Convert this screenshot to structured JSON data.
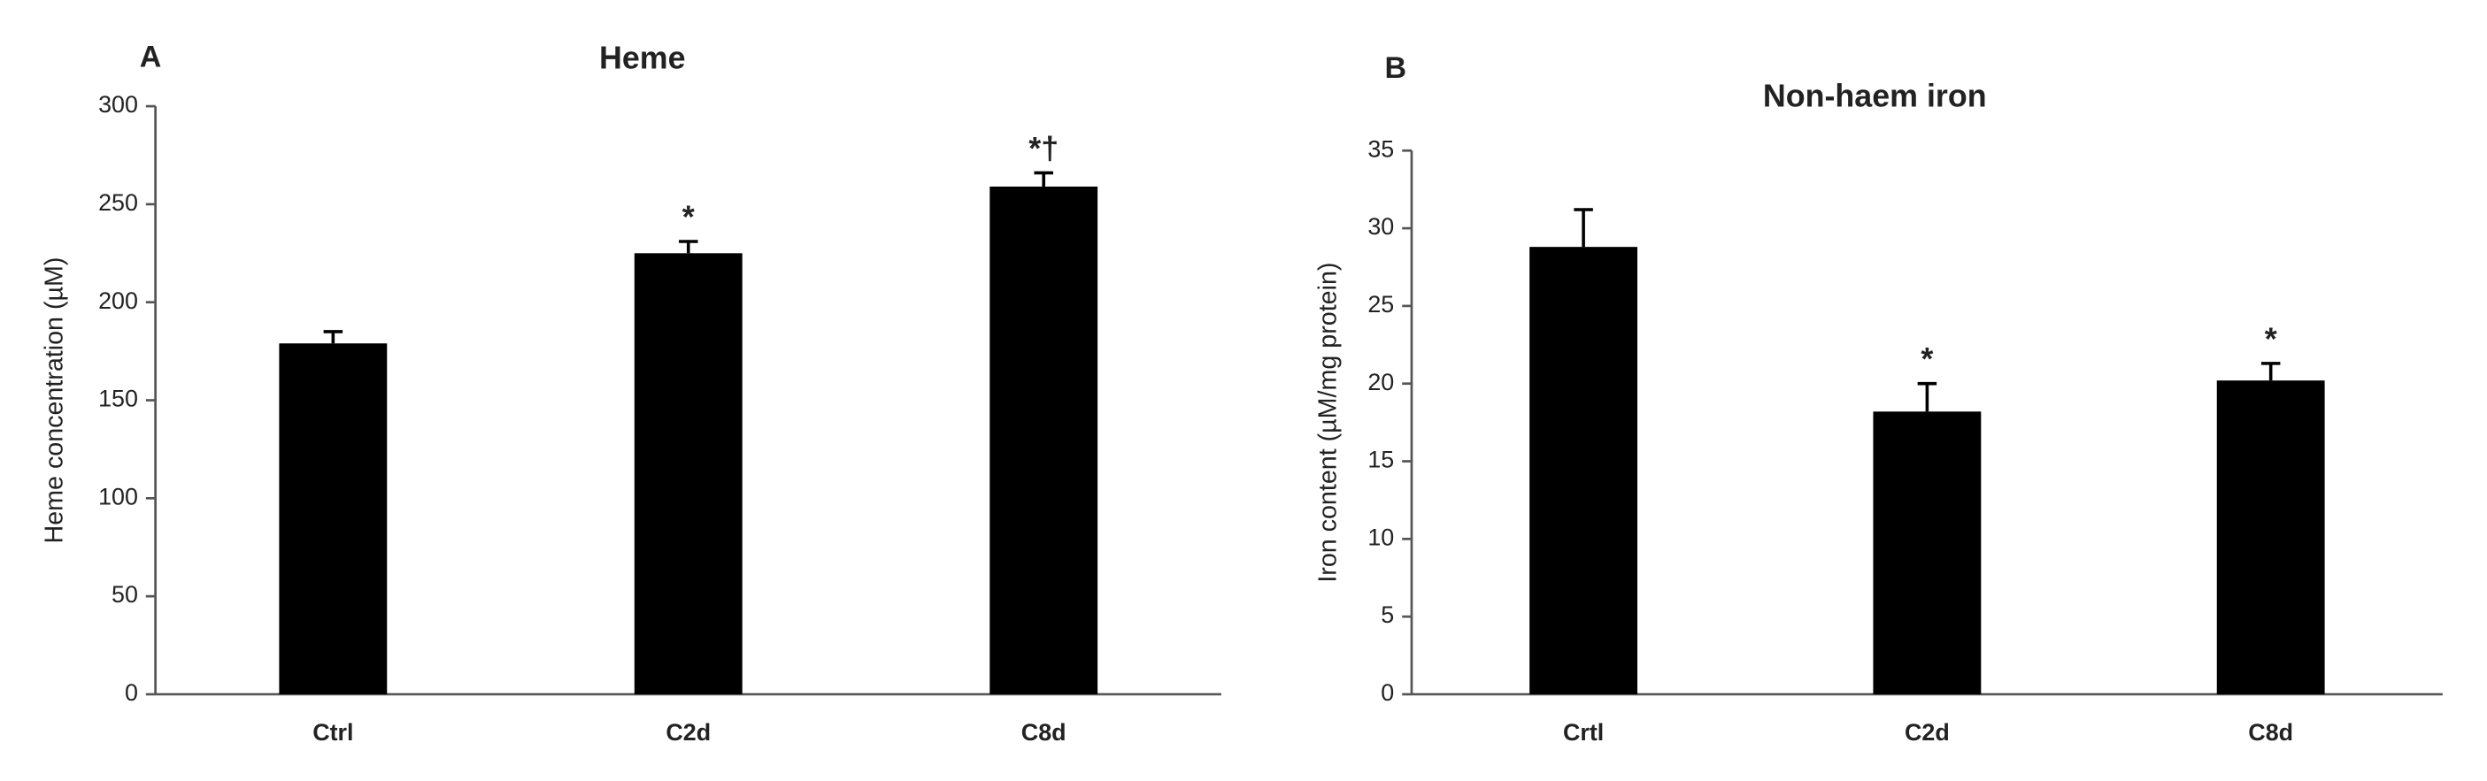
{
  "chart_data": [
    {
      "type": "bar",
      "panel": "A",
      "title": "Heme",
      "y_label": "Heme concentration (µM)",
      "categories": [
        "Ctrl",
        "C2d",
        "C8d"
      ],
      "values": [
        179,
        225,
        259
      ],
      "errors": [
        6,
        6,
        7
      ],
      "annotations": [
        null,
        "*",
        "*†"
      ],
      "color": "#000000",
      "ylim": [
        0,
        300
      ],
      "yticks": [
        0,
        50,
        100,
        150,
        200,
        250,
        300
      ],
      "grid": false
    },
    {
      "type": "bar",
      "panel": "B",
      "title": "Non-haem iron",
      "y_label": "Iron content (µM/mg protein)",
      "categories": [
        "Crtl",
        "C2d",
        "C8d"
      ],
      "values": [
        28.8,
        18.2,
        20.2
      ],
      "errors": [
        2.4,
        1.8,
        1.1
      ],
      "annotations": [
        null,
        "*",
        "*"
      ],
      "color": "#000000",
      "ylim": [
        0,
        35
      ],
      "yticks": [
        0,
        5,
        10,
        15,
        20,
        25,
        30,
        35
      ],
      "grid": false
    }
  ]
}
